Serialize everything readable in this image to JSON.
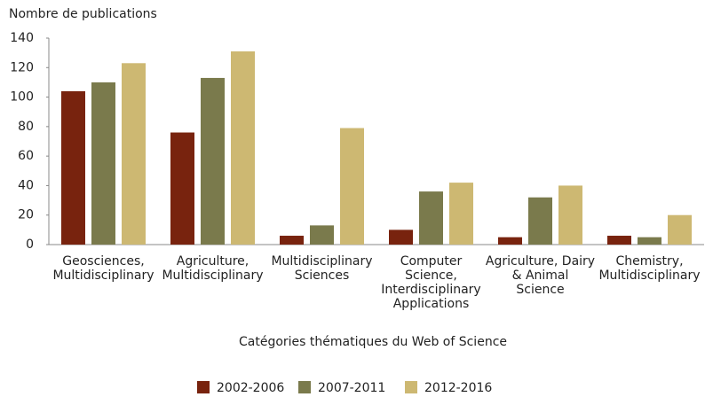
{
  "chart_data": {
    "type": "bar",
    "y_label": "Nombre de publications",
    "x_label": "Catégories thématiques du Web of Science",
    "categories": [
      "Geosciences,\nMultidisciplinary",
      "Agriculture,\nMultidisciplinary",
      "Multidisciplinary\nSciences",
      "Computer\nScience,\nInterdisciplinary\nApplications",
      "Agriculture, Dairy\n& Animal\nScience",
      "Chemistry,\nMultidisciplinary"
    ],
    "series": [
      {
        "name": "2002-2006",
        "color": "#78230e",
        "values": [
          104,
          76,
          6,
          10,
          5,
          6
        ]
      },
      {
        "name": "2007-2011",
        "color": "#7a7a4c",
        "values": [
          110,
          113,
          13,
          36,
          32,
          5
        ]
      },
      {
        "name": "2012-2016",
        "color": "#cdb872",
        "values": [
          123,
          131,
          79,
          42,
          40,
          20
        ]
      }
    ],
    "ylim": [
      0,
      140
    ],
    "yticks": [
      0,
      20,
      40,
      60,
      80,
      100,
      120,
      140
    ],
    "grid": false
  }
}
